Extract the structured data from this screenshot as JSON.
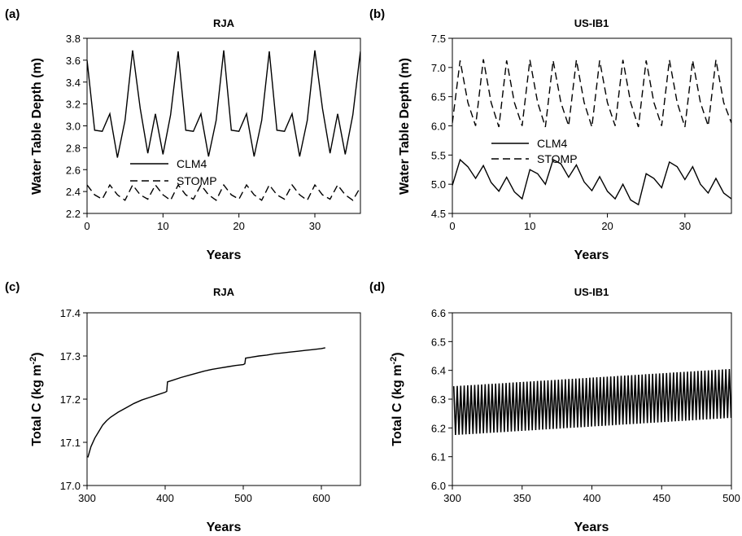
{
  "chart_data": [
    {
      "panel_label": "(a)",
      "title": "RJA",
      "type": "line",
      "xlabel": "Years",
      "ylabel": "Water Table Depth (m)",
      "xlim": [
        0,
        36
      ],
      "ylim": [
        2.2,
        3.8
      ],
      "xticks": [
        0,
        10,
        20,
        30
      ],
      "yticks": [
        2.2,
        2.4,
        2.6,
        2.8,
        3.0,
        3.2,
        3.4,
        3.6,
        3.8
      ],
      "ytick_decimals": 1,
      "legend_position": "center-left",
      "series": [
        {
          "name": "CLM4",
          "style": "solid",
          "x": [
            0,
            1,
            2,
            3,
            4,
            5,
            6,
            7,
            8,
            9,
            10,
            11,
            12,
            13,
            14,
            15,
            16,
            17,
            18,
            19,
            20,
            21,
            22,
            23,
            24,
            25,
            26,
            27,
            28,
            29,
            30,
            31,
            32,
            33,
            34,
            35,
            36
          ],
          "y": [
            3.6,
            2.96,
            2.95,
            3.11,
            2.71,
            3.05,
            3.69,
            3.16,
            2.75,
            3.11,
            2.74,
            3.1,
            3.68,
            2.96,
            2.95,
            3.11,
            2.72,
            3.05,
            3.69,
            2.96,
            2.95,
            3.11,
            2.72,
            3.05,
            3.68,
            2.96,
            2.95,
            3.11,
            2.72,
            3.05,
            3.69,
            3.16,
            2.75,
            3.11,
            2.74,
            3.1,
            3.68
          ]
        },
        {
          "name": "STOMP",
          "style": "dashed",
          "x": [
            0,
            1,
            2,
            3,
            4,
            5,
            6,
            7,
            8,
            9,
            10,
            11,
            12,
            13,
            14,
            15,
            16,
            17,
            18,
            19,
            20,
            21,
            22,
            23,
            24,
            25,
            26,
            27,
            28,
            29,
            30,
            31,
            32,
            33,
            34,
            35,
            36
          ],
          "y": [
            2.46,
            2.37,
            2.33,
            2.46,
            2.37,
            2.32,
            2.46,
            2.37,
            2.33,
            2.46,
            2.37,
            2.32,
            2.46,
            2.37,
            2.33,
            2.46,
            2.37,
            2.32,
            2.46,
            2.37,
            2.33,
            2.46,
            2.37,
            2.32,
            2.46,
            2.37,
            2.33,
            2.46,
            2.37,
            2.32,
            2.46,
            2.37,
            2.33,
            2.46,
            2.37,
            2.32,
            2.44
          ]
        }
      ]
    },
    {
      "panel_label": "(b)",
      "title": "US-IB1",
      "type": "line",
      "xlabel": "Years",
      "ylabel": "Water Table Depth (m)",
      "xlim": [
        0,
        36
      ],
      "ylim": [
        4.5,
        7.5
      ],
      "xticks": [
        0,
        10,
        20,
        30
      ],
      "yticks": [
        4.5,
        5.0,
        5.5,
        6.0,
        6.5,
        7.0,
        7.5
      ],
      "ytick_decimals": 1,
      "legend_position": "center-left",
      "series": [
        {
          "name": "CLM4",
          "style": "solid",
          "x": [
            0,
            1,
            2,
            3,
            4,
            5,
            6,
            7,
            8,
            9,
            10,
            11,
            12,
            13,
            14,
            15,
            16,
            17,
            18,
            19,
            20,
            21,
            22,
            23,
            24,
            25,
            26,
            27,
            28,
            29,
            30,
            31,
            32,
            33,
            34,
            35,
            36
          ],
          "y": [
            4.98,
            5.42,
            5.3,
            5.1,
            5.32,
            5.03,
            4.88,
            5.12,
            4.87,
            4.75,
            5.25,
            5.18,
            5.0,
            5.42,
            5.35,
            5.12,
            5.33,
            5.04,
            4.89,
            5.13,
            4.88,
            4.75,
            5.0,
            4.73,
            4.65,
            5.18,
            5.1,
            4.94,
            5.38,
            5.3,
            5.08,
            5.3,
            5.0,
            4.85,
            5.1,
            4.85,
            4.75
          ]
        },
        {
          "name": "STOMP",
          "style": "dashed",
          "x": [
            0,
            1,
            2,
            3,
            4,
            5,
            6,
            7,
            8,
            9,
            10,
            11,
            12,
            13,
            14,
            15,
            16,
            17,
            18,
            19,
            20,
            21,
            22,
            23,
            24,
            25,
            26,
            27,
            28,
            29,
            30,
            31,
            32,
            33,
            34,
            35,
            36
          ],
          "y": [
            6.05,
            7.12,
            6.4,
            6.0,
            7.14,
            6.4,
            5.98,
            7.12,
            6.4,
            6.0,
            7.13,
            6.4,
            5.98,
            7.12,
            6.4,
            6.0,
            7.13,
            6.4,
            5.98,
            7.12,
            6.4,
            6.0,
            7.13,
            6.4,
            5.98,
            7.12,
            6.4,
            6.0,
            7.13,
            6.4,
            5.98,
            7.12,
            6.4,
            6.0,
            7.13,
            6.4,
            6.05
          ]
        }
      ]
    },
    {
      "panel_label": "(c)",
      "title": "RJA",
      "type": "line",
      "xlabel": "Years",
      "ylabel": "Total C (kg m-2)",
      "ylabel_main": "Total C (kg m",
      "ylabel_sup": "-2",
      "ylabel_end": ")",
      "xlim": [
        300,
        650
      ],
      "ylim": [
        17.0,
        17.4
      ],
      "xticks": [
        300,
        400,
        500,
        600
      ],
      "yticks": [
        17.0,
        17.1,
        17.2,
        17.3,
        17.4
      ],
      "ytick_decimals": 1,
      "series": [
        {
          "name": "",
          "style": "solid",
          "x": [
            301,
            305,
            310,
            315,
            320,
            325,
            330,
            340,
            350,
            360,
            370,
            380,
            390,
            400,
            402,
            403,
            410,
            420,
            430,
            440,
            450,
            460,
            470,
            480,
            490,
            500,
            502,
            503,
            510,
            520,
            530,
            540,
            550,
            560,
            570,
            580,
            590,
            600,
            605
          ],
          "y": [
            17.065,
            17.09,
            17.11,
            17.125,
            17.14,
            17.15,
            17.158,
            17.17,
            17.18,
            17.19,
            17.198,
            17.204,
            17.21,
            17.216,
            17.218,
            17.24,
            17.244,
            17.25,
            17.255,
            17.26,
            17.265,
            17.269,
            17.272,
            17.275,
            17.278,
            17.28,
            17.282,
            17.295,
            17.297,
            17.3,
            17.302,
            17.305,
            17.307,
            17.309,
            17.311,
            17.313,
            17.315,
            17.317,
            17.319
          ]
        }
      ]
    },
    {
      "panel_label": "(d)",
      "title": "US-IB1",
      "type": "line",
      "xlabel": "Years",
      "ylabel": "Total C (kg m-2)",
      "ylabel_main": "Total C (kg m",
      "ylabel_sup": "-2",
      "ylabel_end": ")",
      "xlim": [
        300,
        500
      ],
      "ylim": [
        6.0,
        6.6
      ],
      "xticks": [
        300,
        350,
        400,
        450,
        500
      ],
      "yticks": [
        6.0,
        6.1,
        6.2,
        6.3,
        6.4,
        6.5,
        6.6
      ],
      "ytick_decimals": 1,
      "oscillation": {
        "x_start": 301,
        "x_end": 500,
        "period_years": 2.5,
        "low_start": 6.175,
        "low_end": 6.235,
        "high_start": 6.345,
        "high_end": 6.405
      },
      "series": [
        {
          "name": "",
          "style": "solid"
        }
      ]
    }
  ]
}
